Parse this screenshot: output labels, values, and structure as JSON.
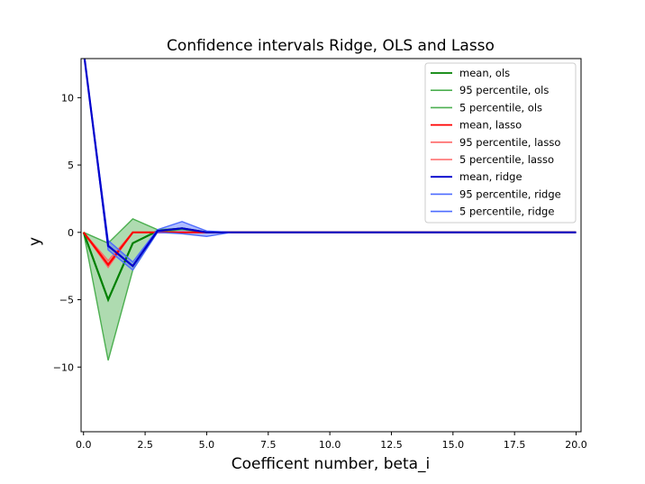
{
  "chart_data": {
    "type": "line",
    "title": "Confidence intervals Ridge, OLS and Lasso",
    "xlabel": "Coefficent number, beta_i",
    "ylabel": "y",
    "xlim": [
      -0.1,
      20.2
    ],
    "ylim": [
      -14.8,
      12.9
    ],
    "x_ticks": [
      {
        "value": 0,
        "label": "0.0"
      },
      {
        "value": 2.5,
        "label": "2.5"
      },
      {
        "value": 5,
        "label": "5.0"
      },
      {
        "value": 7.5,
        "label": "7.5"
      },
      {
        "value": 10,
        "label": "10.0"
      },
      {
        "value": 12.5,
        "label": "12.5"
      },
      {
        "value": 15,
        "label": "15.0"
      },
      {
        "value": 17.5,
        "label": "17.5"
      },
      {
        "value": 20,
        "label": "20.0"
      }
    ],
    "y_ticks": [
      {
        "value": 10,
        "label": "10"
      },
      {
        "value": 5,
        "label": "5"
      },
      {
        "value": 0,
        "label": "0"
      },
      {
        "value": -5,
        "label": "−5"
      },
      {
        "value": -10,
        "label": "−10"
      }
    ],
    "grid": false,
    "legend_position": "top-right",
    "x": [
      0,
      1,
      2,
      3,
      4,
      5,
      6,
      7,
      8,
      9,
      10,
      11,
      12,
      13,
      14,
      15,
      16,
      17,
      18,
      19,
      20
    ],
    "groups": [
      {
        "key": "ols",
        "color": "#008000",
        "band_color": "#4caf50",
        "mean": {
          "name": "mean, ols",
          "values": [
            0,
            -5.0,
            -0.8,
            0.1,
            0.3,
            0,
            0,
            0,
            0,
            0,
            0,
            0,
            0,
            0,
            0,
            0,
            0,
            0,
            0,
            0,
            0
          ]
        },
        "upper": {
          "name": "95 percentile, ols",
          "values": [
            0,
            -0.8,
            1.0,
            0.2,
            0.3,
            0,
            0,
            0,
            0,
            0,
            0,
            0,
            0,
            0,
            0,
            0,
            0,
            0,
            0,
            0,
            0
          ]
        },
        "lower": {
          "name": "5 percentile, ols",
          "values": [
            0,
            -9.5,
            -2.8,
            0.0,
            0.2,
            0,
            0,
            0,
            0,
            0,
            0,
            0,
            0,
            0,
            0,
            0,
            0,
            0,
            0,
            0,
            0
          ]
        }
      },
      {
        "key": "lasso",
        "color": "#ff0000",
        "band_color": "#ff6666",
        "mean": {
          "name": "mean, lasso",
          "values": [
            0,
            -2.4,
            0,
            0,
            0,
            0,
            0,
            0,
            0,
            0,
            0,
            0,
            0,
            0,
            0,
            0,
            0,
            0,
            0,
            0,
            0
          ]
        },
        "upper": {
          "name": "95 percentile, lasso",
          "values": [
            0,
            -2.1,
            0,
            0,
            0,
            0,
            0,
            0,
            0,
            0,
            0,
            0,
            0,
            0,
            0,
            0,
            0,
            0,
            0,
            0,
            0
          ]
        },
        "lower": {
          "name": "5 percentile, lasso",
          "values": [
            0,
            -2.6,
            0,
            0,
            0,
            0,
            0,
            0,
            0,
            0,
            0,
            0,
            0,
            0,
            0,
            0,
            0,
            0,
            0,
            0,
            0
          ]
        }
      },
      {
        "key": "ridge",
        "color": "#0000cc",
        "band_color": "#4d6bff",
        "mean": {
          "name": "mean, ridge",
          "values": [
            13.5,
            -1.0,
            -2.5,
            0.1,
            0.3,
            0,
            0,
            0,
            0,
            0,
            0,
            0,
            0,
            0,
            0,
            0,
            0,
            0,
            0,
            0,
            0
          ]
        },
        "upper": {
          "name": "95 percentile, ridge",
          "values": [
            13.5,
            -0.6,
            -2.2,
            0.2,
            0.8,
            0.1,
            0,
            0,
            0,
            0,
            0,
            0,
            0,
            0,
            0,
            0,
            0,
            0,
            0,
            0,
            0
          ]
        },
        "lower": {
          "name": "5 percentile, ridge",
          "values": [
            13.5,
            -1.3,
            -2.8,
            0.0,
            -0.1,
            -0.3,
            0,
            0,
            0,
            0,
            0,
            0,
            0,
            0,
            0,
            0,
            0,
            0,
            0,
            0,
            0
          ]
        }
      }
    ]
  }
}
